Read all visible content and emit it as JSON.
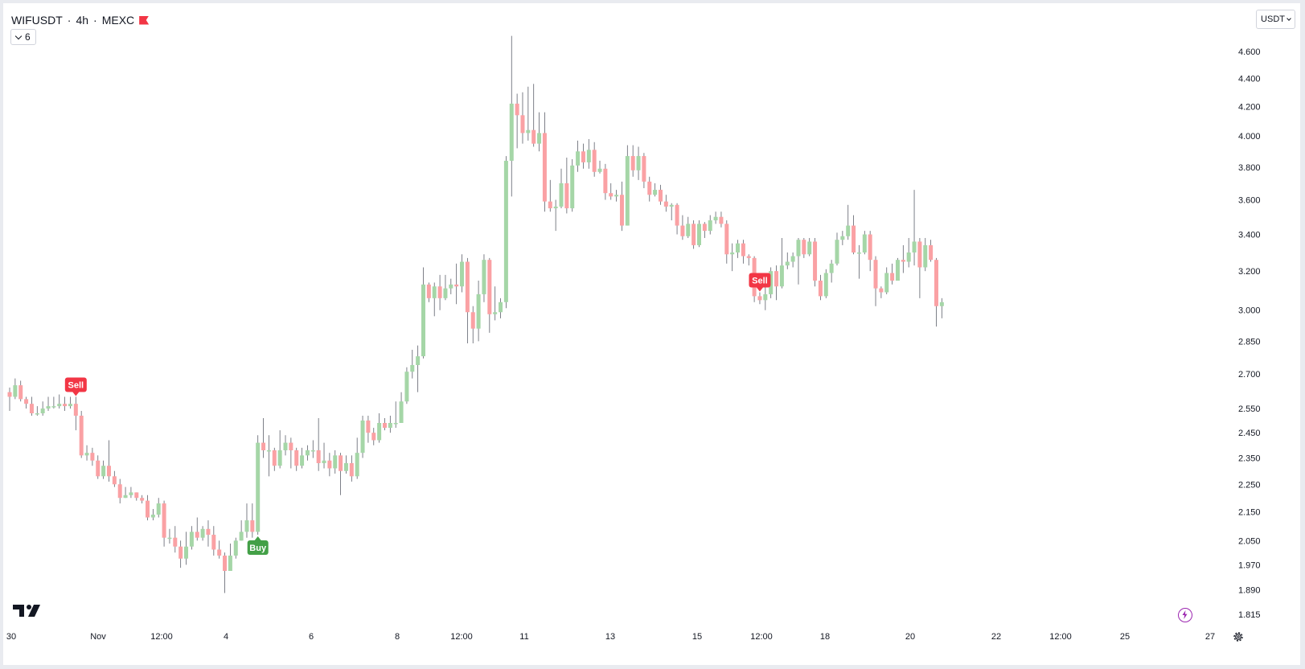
{
  "header": {
    "symbol": "WIFUSDT",
    "separator1": "·",
    "interval": "4h",
    "separator2": "·",
    "exchange": "MEXC",
    "flag_icon": "flag-icon",
    "indicator_count": "6"
  },
  "currency_selector": {
    "label": "USDT"
  },
  "colors": {
    "up": "#a5d6a7",
    "down": "#faa1a4",
    "wick": "#5d606b",
    "sell": "#f23645",
    "buy": "#43a047"
  },
  "chart_data": {
    "type": "candlestick",
    "scale": "log",
    "ylim": [
      1.8,
      4.85
    ],
    "y_ticks": [
      "4.600",
      "4.400",
      "4.200",
      "4.000",
      "3.800",
      "3.600",
      "3.400",
      "3.200",
      "3.000",
      "2.850",
      "2.700",
      "2.550",
      "2.450",
      "2.350",
      "2.250",
      "2.150",
      "2.050",
      "1.970",
      "1.890",
      "1.815"
    ],
    "x_ticks": [
      "30",
      "Nov",
      "12:00",
      "4",
      "6",
      "8",
      "12:00",
      "11",
      "13",
      "15",
      "12:00",
      "18",
      "20",
      "22",
      "12:00",
      "25",
      "27"
    ],
    "candles": [
      [
        2.62,
        2.6,
        2.64,
        2.54
      ],
      [
        2.6,
        2.65,
        2.68,
        2.59
      ],
      [
        2.65,
        2.59,
        2.67,
        2.58
      ],
      [
        2.59,
        2.57,
        2.6,
        2.55
      ],
      [
        2.57,
        2.53,
        2.6,
        2.52
      ],
      [
        2.53,
        2.53,
        2.56,
        2.52
      ],
      [
        2.53,
        2.55,
        2.58,
        2.52
      ],
      [
        2.55,
        2.56,
        2.6,
        2.54
      ],
      [
        2.56,
        2.56,
        2.6,
        2.55
      ],
      [
        2.56,
        2.57,
        2.61,
        2.55
      ],
      [
        2.57,
        2.56,
        2.6,
        2.54
      ],
      [
        2.56,
        2.57,
        2.6,
        2.55
      ],
      [
        2.57,
        2.52,
        2.6,
        2.46
      ],
      [
        2.52,
        2.36,
        2.54,
        2.35
      ],
      [
        2.36,
        2.37,
        2.4,
        2.34
      ],
      [
        2.37,
        2.34,
        2.39,
        2.32
      ],
      [
        2.34,
        2.28,
        2.36,
        2.27
      ],
      [
        2.28,
        2.32,
        2.34,
        2.27
      ],
      [
        2.32,
        2.28,
        2.42,
        2.26
      ],
      [
        2.28,
        2.25,
        2.3,
        2.24
      ],
      [
        2.25,
        2.2,
        2.27,
        2.18
      ],
      [
        2.2,
        2.21,
        2.24,
        2.2
      ],
      [
        2.21,
        2.22,
        2.24,
        2.2
      ],
      [
        2.22,
        2.2,
        2.22,
        2.19
      ],
      [
        2.2,
        2.19,
        2.21,
        2.18
      ],
      [
        2.19,
        2.13,
        2.21,
        2.12
      ],
      [
        2.13,
        2.14,
        2.16,
        2.12
      ],
      [
        2.14,
        2.18,
        2.2,
        2.13
      ],
      [
        2.18,
        2.06,
        2.19,
        2.03
      ],
      [
        2.06,
        2.06,
        2.09,
        2.04
      ],
      [
        2.06,
        2.03,
        2.1,
        2.01
      ],
      [
        2.03,
        1.99,
        2.05,
        1.96
      ],
      [
        1.99,
        2.03,
        2.08,
        1.97
      ],
      [
        2.03,
        2.08,
        2.1,
        2.02
      ],
      [
        2.08,
        2.06,
        2.13,
        2.05
      ],
      [
        2.06,
        2.09,
        2.1,
        2.05
      ],
      [
        2.09,
        2.07,
        2.12,
        2.03
      ],
      [
        2.07,
        2.02,
        2.1,
        2.0
      ],
      [
        2.02,
        2.0,
        2.05,
        1.99
      ],
      [
        2.0,
        1.95,
        2.01,
        1.88
      ],
      [
        1.95,
        2.0,
        2.04,
        1.95
      ],
      [
        2.0,
        2.05,
        2.06,
        1.99
      ],
      [
        2.05,
        2.08,
        2.12,
        2.05
      ],
      [
        2.08,
        2.12,
        2.18,
        2.06
      ],
      [
        2.12,
        2.08,
        2.18,
        2.06
      ],
      [
        2.08,
        2.41,
        2.44,
        2.07
      ],
      [
        2.41,
        2.38,
        2.51,
        2.35
      ],
      [
        2.38,
        2.38,
        2.44,
        2.28
      ],
      [
        2.38,
        2.32,
        2.39,
        2.3
      ],
      [
        2.32,
        2.38,
        2.46,
        2.31
      ],
      [
        2.38,
        2.41,
        2.44,
        2.36
      ],
      [
        2.41,
        2.38,
        2.43,
        2.31
      ],
      [
        2.38,
        2.32,
        2.39,
        2.3
      ],
      [
        2.32,
        2.36,
        2.39,
        2.31
      ],
      [
        2.36,
        2.38,
        2.4,
        2.34
      ],
      [
        2.38,
        2.38,
        2.42,
        2.35
      ],
      [
        2.38,
        2.33,
        2.51,
        2.3
      ],
      [
        2.33,
        2.34,
        2.41,
        2.31
      ],
      [
        2.34,
        2.31,
        2.37,
        2.28
      ],
      [
        2.31,
        2.36,
        2.38,
        2.29
      ],
      [
        2.36,
        2.3,
        2.37,
        2.21
      ],
      [
        2.3,
        2.33,
        2.36,
        2.29
      ],
      [
        2.33,
        2.28,
        2.36,
        2.26
      ],
      [
        2.28,
        2.37,
        2.43,
        2.27
      ],
      [
        2.37,
        2.5,
        2.52,
        2.35
      ],
      [
        2.5,
        2.45,
        2.52,
        2.41
      ],
      [
        2.45,
        2.42,
        2.47,
        2.4
      ],
      [
        2.42,
        2.49,
        2.53,
        2.41
      ],
      [
        2.49,
        2.47,
        2.51,
        2.46
      ],
      [
        2.47,
        2.49,
        2.52,
        2.45
      ],
      [
        2.49,
        2.49,
        2.58,
        2.47
      ],
      [
        2.49,
        2.58,
        2.62,
        2.49
      ],
      [
        2.58,
        2.71,
        2.73,
        2.57
      ],
      [
        2.71,
        2.74,
        2.81,
        2.68
      ],
      [
        2.74,
        2.78,
        2.83,
        2.62
      ],
      [
        2.78,
        3.13,
        3.22,
        2.77
      ],
      [
        3.13,
        3.06,
        3.14,
        3.04
      ],
      [
        3.06,
        3.12,
        3.14,
        2.97
      ],
      [
        3.12,
        3.06,
        3.18,
        3.0
      ],
      [
        3.06,
        3.11,
        3.18,
        3.05
      ],
      [
        3.11,
        3.13,
        3.16,
        3.08
      ],
      [
        3.13,
        3.12,
        3.24,
        3.03
      ],
      [
        3.12,
        3.25,
        3.29,
        3.09
      ],
      [
        3.25,
        2.99,
        3.27,
        2.84
      ],
      [
        2.99,
        2.91,
        3.02,
        2.84
      ],
      [
        2.91,
        3.08,
        3.15,
        2.85
      ],
      [
        3.08,
        3.26,
        3.29,
        3.04
      ],
      [
        3.26,
        2.98,
        3.27,
        2.89
      ],
      [
        2.98,
        2.99,
        3.12,
        2.95
      ],
      [
        2.99,
        3.04,
        3.06,
        2.96
      ],
      [
        3.04,
        3.84,
        3.87,
        3.01
      ],
      [
        3.84,
        4.22,
        4.72,
        3.62
      ],
      [
        4.22,
        4.14,
        4.29,
        3.92
      ],
      [
        4.14,
        4.02,
        4.3,
        3.95
      ],
      [
        4.02,
        4.04,
        4.34,
        3.97
      ],
      [
        4.04,
        3.95,
        4.36,
        3.93
      ],
      [
        3.95,
        4.02,
        4.16,
        3.9
      ],
      [
        4.02,
        3.59,
        4.16,
        3.53
      ],
      [
        3.59,
        3.55,
        3.72,
        3.53
      ],
      [
        3.55,
        3.56,
        3.6,
        3.42
      ],
      [
        3.56,
        3.7,
        3.79,
        3.55
      ],
      [
        3.7,
        3.55,
        3.86,
        3.52
      ],
      [
        3.55,
        3.81,
        3.85,
        3.53
      ],
      [
        3.81,
        3.9,
        3.97,
        3.77
      ],
      [
        3.9,
        3.83,
        3.95,
        3.79
      ],
      [
        3.83,
        3.91,
        3.98,
        3.79
      ],
      [
        3.91,
        3.77,
        3.96,
        3.74
      ],
      [
        3.77,
        3.79,
        3.84,
        3.76
      ],
      [
        3.79,
        3.64,
        3.82,
        3.6
      ],
      [
        3.64,
        3.62,
        3.7,
        3.6
      ],
      [
        3.62,
        3.63,
        3.66,
        3.59
      ],
      [
        3.63,
        3.45,
        3.71,
        3.42
      ],
      [
        3.45,
        3.87,
        3.94,
        3.45
      ],
      [
        3.87,
        3.78,
        3.94,
        3.74
      ],
      [
        3.78,
        3.87,
        3.93,
        3.72
      ],
      [
        3.87,
        3.71,
        3.89,
        3.67
      ],
      [
        3.71,
        3.63,
        3.74,
        3.59
      ],
      [
        3.63,
        3.66,
        3.7,
        3.62
      ],
      [
        3.66,
        3.59,
        3.69,
        3.57
      ],
      [
        3.59,
        3.56,
        3.63,
        3.53
      ],
      [
        3.56,
        3.57,
        3.58,
        3.48
      ],
      [
        3.57,
        3.45,
        3.58,
        3.4
      ],
      [
        3.45,
        3.39,
        3.51,
        3.37
      ],
      [
        3.39,
        3.46,
        3.5,
        3.38
      ],
      [
        3.46,
        3.34,
        3.48,
        3.32
      ],
      [
        3.34,
        3.46,
        3.48,
        3.33
      ],
      [
        3.46,
        3.42,
        3.47,
        3.38
      ],
      [
        3.42,
        3.48,
        3.51,
        3.4
      ],
      [
        3.48,
        3.5,
        3.53,
        3.46
      ],
      [
        3.5,
        3.46,
        3.53,
        3.44
      ],
      [
        3.46,
        3.29,
        3.48,
        3.24
      ],
      [
        3.29,
        3.3,
        3.35,
        3.2
      ],
      [
        3.3,
        3.35,
        3.37,
        3.27
      ],
      [
        3.35,
        3.28,
        3.37,
        3.24
      ],
      [
        3.28,
        3.27,
        3.29,
        3.23
      ],
      [
        3.27,
        3.07,
        3.28,
        3.04
      ],
      [
        3.07,
        3.05,
        3.09,
        3.03
      ],
      [
        3.05,
        3.08,
        3.16,
        3.0
      ],
      [
        3.08,
        3.2,
        3.22,
        3.06
      ],
      [
        3.2,
        3.12,
        3.23,
        3.05
      ],
      [
        3.12,
        3.23,
        3.38,
        3.11
      ],
      [
        3.23,
        3.25,
        3.3,
        3.21
      ],
      [
        3.25,
        3.28,
        3.3,
        3.22
      ],
      [
        3.28,
        3.37,
        3.38,
        3.13
      ],
      [
        3.37,
        3.29,
        3.38,
        3.27
      ],
      [
        3.29,
        3.36,
        3.38,
        3.28
      ],
      [
        3.36,
        3.15,
        3.38,
        3.12
      ],
      [
        3.15,
        3.07,
        3.18,
        3.05
      ],
      [
        3.07,
        3.19,
        3.21,
        3.06
      ],
      [
        3.19,
        3.24,
        3.26,
        3.14
      ],
      [
        3.24,
        3.37,
        3.41,
        3.23
      ],
      [
        3.37,
        3.39,
        3.42,
        3.34
      ],
      [
        3.39,
        3.45,
        3.57,
        3.37
      ],
      [
        3.45,
        3.3,
        3.51,
        3.29
      ],
      [
        3.3,
        3.3,
        3.34,
        3.16
      ],
      [
        3.3,
        3.4,
        3.42,
        3.29
      ],
      [
        3.4,
        3.26,
        3.42,
        3.2
      ],
      [
        3.26,
        3.11,
        3.28,
        3.02
      ],
      [
        3.11,
        3.09,
        3.12,
        3.06
      ],
      [
        3.09,
        3.19,
        3.22,
        3.08
      ],
      [
        3.19,
        3.15,
        3.24,
        3.13
      ],
      [
        3.15,
        3.26,
        3.27,
        3.15
      ],
      [
        3.26,
        3.25,
        3.34,
        3.19
      ],
      [
        3.25,
        3.3,
        3.38,
        3.22
      ],
      [
        3.3,
        3.36,
        3.66,
        3.23
      ],
      [
        3.36,
        3.22,
        3.38,
        3.06
      ],
      [
        3.22,
        3.34,
        3.38,
        3.2
      ],
      [
        3.34,
        3.26,
        3.37,
        3.25
      ],
      [
        3.26,
        3.02,
        3.27,
        2.92
      ],
      [
        3.02,
        3.04,
        3.06,
        2.96
      ]
    ],
    "signals": [
      {
        "label": "Sell",
        "type": "sell",
        "candle_index": 12
      },
      {
        "label": "Buy",
        "type": "buy",
        "candle_index": 45
      },
      {
        "label": "Sell",
        "type": "sell",
        "candle_index": 136
      }
    ]
  }
}
